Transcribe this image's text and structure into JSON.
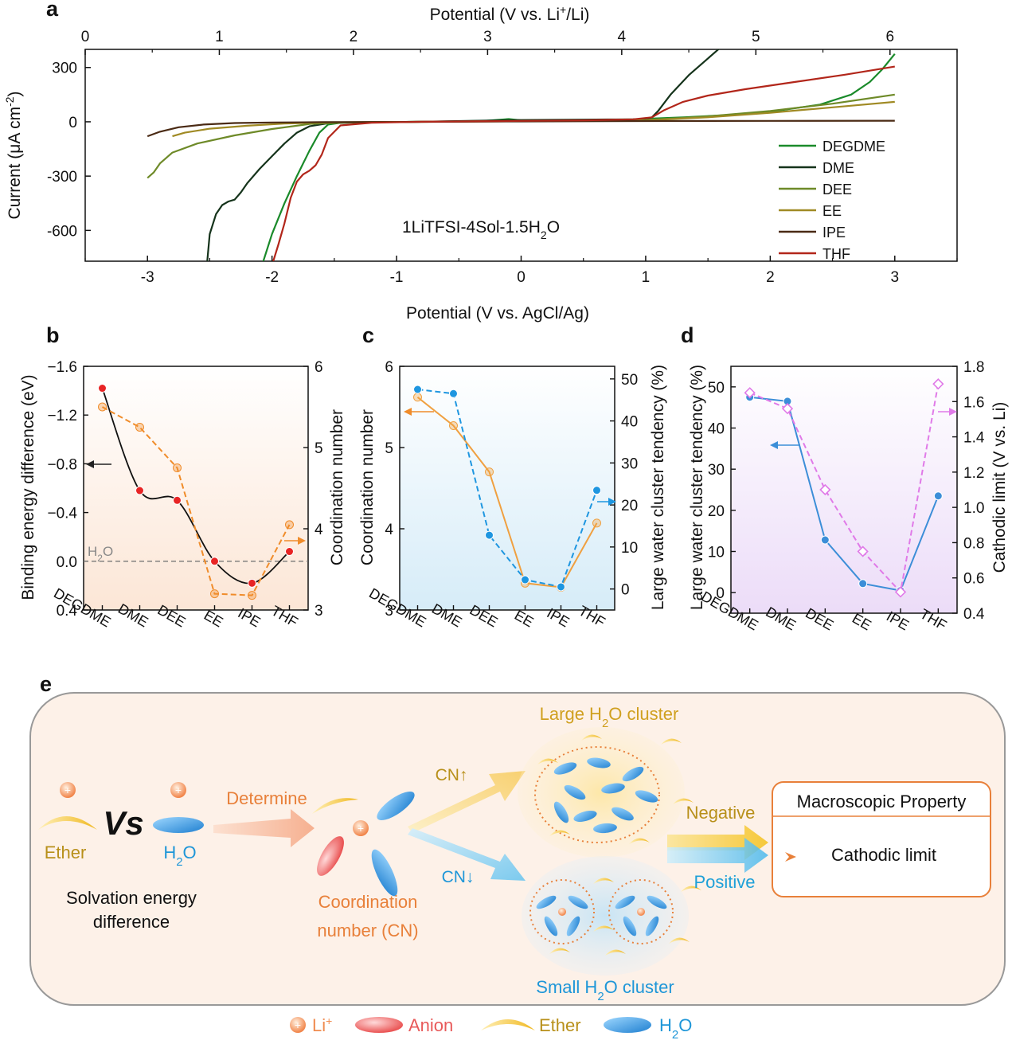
{
  "panels": {
    "a": "a",
    "b": "b",
    "c": "c",
    "d": "d",
    "e": "e"
  },
  "chart_data": [
    {
      "panel": "a",
      "type": "line",
      "xlabel": "Potential (V vs. AgCl/Ag)",
      "x2label_pre": "Potential (V vs. Li",
      "x2label_sup": "+",
      "x2label_post": "/Li)",
      "ylabel_pre": "Current (μA cm",
      "ylabel_sup": "-2",
      "ylabel_post": ")",
      "annotation_pre": "1LiTFSI-4Sol-1.5H",
      "annotation_sub": "2",
      "annotation_post": "O",
      "xlim": [
        -3.5,
        3.5
      ],
      "ylim": [
        -770,
        400
      ],
      "x2lim": [
        0,
        6.5
      ],
      "xticks": [
        -3,
        -2,
        -1,
        0,
        1,
        2,
        3
      ],
      "yticks": [
        300,
        0,
        -300,
        -600
      ],
      "x2ticks": [
        0,
        1,
        2,
        3,
        4,
        5,
        6
      ],
      "legend": "bottom-right",
      "series": [
        {
          "name": "DEGDME",
          "color": "#1a8a2a",
          "x": [
            -2.07,
            -2.0,
            -1.9,
            -1.8,
            -1.7,
            -1.62,
            -1.55,
            -1.45,
            -1.2,
            -0.8,
            -0.3,
            -0.1,
            0,
            0.5,
            0.9,
            1.05,
            1.3,
            1.6,
            2.0,
            2.4,
            2.65,
            2.8,
            2.9,
            3.0
          ],
          "y": [
            -770,
            -620,
            -450,
            -300,
            -160,
            -60,
            -15,
            -5,
            -2,
            0,
            5,
            15,
            8,
            10,
            14,
            18,
            25,
            35,
            55,
            95,
            150,
            220,
            290,
            375
          ]
        },
        {
          "name": "DME",
          "color": "#15331b",
          "x": [
            -2.52,
            -2.5,
            -2.45,
            -2.4,
            -2.35,
            -2.3,
            -2.25,
            -2.2,
            -2.1,
            -2.0,
            -1.9,
            -1.8,
            -1.7,
            -1.55,
            -1.3,
            -0.8,
            0,
            0.5,
            0.9,
            1.0,
            1.05,
            1.1,
            1.2,
            1.35,
            1.5,
            1.6
          ],
          "y": [
            -770,
            -620,
            -510,
            -460,
            -440,
            -430,
            -390,
            -340,
            -260,
            -190,
            -120,
            -60,
            -25,
            -8,
            -3,
            0,
            10,
            12,
            14,
            16,
            25,
            60,
            150,
            260,
            350,
            410
          ]
        },
        {
          "name": "DEE",
          "color": "#6e8a28",
          "x": [
            -3.0,
            -2.95,
            -2.9,
            -2.8,
            -2.6,
            -2.3,
            -2.0,
            -1.7,
            -1.4,
            -1.0,
            0,
            1.0,
            1.5,
            2.0,
            2.5,
            3.0
          ],
          "y": [
            -310,
            -280,
            -230,
            -170,
            -120,
            -75,
            -40,
            -12,
            -4,
            -1,
            4,
            10,
            30,
            60,
            100,
            150
          ]
        },
        {
          "name": "EE",
          "color": "#a08a24",
          "x": [
            -2.8,
            -2.7,
            -2.5,
            -2.2,
            -1.9,
            -1.6,
            -1.3,
            -1.0,
            0,
            1.0,
            1.5,
            2.0,
            2.5,
            3.0
          ],
          "y": [
            -80,
            -60,
            -38,
            -22,
            -10,
            -4,
            -2,
            -1,
            3,
            8,
            25,
            50,
            80,
            110
          ]
        },
        {
          "name": "IPE",
          "color": "#4a2a14",
          "x": [
            -3.0,
            -2.9,
            -2.75,
            -2.55,
            -2.3,
            -2.0,
            -1.6,
            -1.0,
            0,
            1.0,
            2.0,
            3.0
          ],
          "y": [
            -80,
            -55,
            -30,
            -15,
            -7,
            -4,
            -2,
            -1,
            2,
            4,
            5,
            6
          ]
        },
        {
          "name": "THF",
          "color": "#b2261a",
          "x": [
            -1.99,
            -1.95,
            -1.9,
            -1.85,
            -1.8,
            -1.75,
            -1.7,
            -1.65,
            -1.6,
            -1.55,
            -1.45,
            -1.2,
            -0.8,
            0,
            0.5,
            0.9,
            1.05,
            1.15,
            1.3,
            1.5,
            1.8,
            2.2,
            2.6,
            3.0
          ],
          "y": [
            -770,
            -680,
            -560,
            -420,
            -330,
            -290,
            -270,
            -240,
            -180,
            -90,
            -20,
            -5,
            0,
            5,
            8,
            14,
            25,
            65,
            110,
            145,
            180,
            220,
            260,
            305
          ]
        }
      ]
    },
    {
      "panel": "b",
      "type": "line",
      "categories": [
        "DEGDME",
        "DME",
        "DEE",
        "EE",
        "IPE",
        "THF"
      ],
      "ylabel": "Binding energy difference (eV)",
      "y2label": "Coordination number",
      "ylim": [
        0.4,
        -1.6
      ],
      "yticks": [
        -1.6,
        -1.2,
        -0.8,
        -0.4,
        0.0,
        0.4
      ],
      "ytick_labels": [
        "−1.6",
        "−1.2",
        "−0.8",
        "−0.4",
        "0.0",
        "0.4"
      ],
      "y2lim": [
        3,
        6
      ],
      "y2ticks": [
        3,
        4,
        5,
        6
      ],
      "h2o_pre": "H",
      "h2o_sub": "2",
      "h2o_post": "O",
      "h2o_level": 0.0,
      "series": [
        {
          "axis": "left",
          "color": "#e82424",
          "style": "solid-smooth",
          "values": [
            -1.42,
            -0.58,
            -0.5,
            0.0,
            0.18,
            -0.08
          ]
        },
        {
          "axis": "right",
          "color": "#f08c2a",
          "style": "dashed",
          "values": [
            5.5,
            5.25,
            4.75,
            3.2,
            3.18,
            4.05
          ]
        }
      ]
    },
    {
      "panel": "c",
      "type": "line",
      "categories": [
        "DEGDME",
        "DME",
        "DEE",
        "EE",
        "IPE",
        "THF"
      ],
      "ylabel": "Coordination number",
      "y2label": "Large water cluster tendency (%)",
      "ylim": [
        3,
        6
      ],
      "yticks": [
        3,
        4,
        5,
        6
      ],
      "y2lim": [
        -5,
        53
      ],
      "y2ticks": [
        0,
        10,
        20,
        30,
        40,
        50
      ],
      "series": [
        {
          "axis": "left",
          "color": "#f0a040",
          "style": "solid",
          "values": [
            5.62,
            5.27,
            4.7,
            3.33,
            3.28,
            4.07
          ]
        },
        {
          "axis": "right",
          "color": "#1e96e0",
          "style": "dashed",
          "values": [
            47.5,
            46.5,
            12.8,
            2.2,
            0.5,
            23.5
          ]
        }
      ]
    },
    {
      "panel": "d",
      "type": "line",
      "categories": [
        "DEGDME",
        "DME",
        "DEE",
        "EE",
        "IPE",
        "THF"
      ],
      "ylabel": "Large water cluster tendency (%)",
      "y2label": "Cathodic limit (V vs. Li)",
      "ylim": [
        -5,
        55
      ],
      "yticks": [
        0,
        10,
        20,
        30,
        40,
        50
      ],
      "y2lim": [
        0.4,
        1.8
      ],
      "y2ticks": [
        0.4,
        0.6,
        0.8,
        1.0,
        1.2,
        1.4,
        1.6,
        1.8
      ],
      "series": [
        {
          "axis": "left",
          "color": "#3c8ed8",
          "style": "solid",
          "values": [
            47.5,
            46.5,
            12.8,
            2.2,
            0.5,
            23.5
          ]
        },
        {
          "axis": "right",
          "color": "#e07ae8",
          "style": "dashed",
          "values": [
            1.65,
            1.56,
            1.1,
            0.75,
            0.52,
            1.7
          ]
        }
      ]
    }
  ],
  "schematic": {
    "ether": "Ether",
    "vs": "Vs",
    "h2o_pre": "H",
    "h2o_sub": "2",
    "h2o_post": "O",
    "determine": "Determine",
    "solvation_line1": "Solvation energy",
    "solvation_line2": "difference",
    "cn_line1": "Coordination",
    "cn_line2": "number (CN)",
    "cn_up": "CN↑",
    "cn_down": "CN↓",
    "large_pre": "Large H",
    "large_sub": "2",
    "large_post": "O cluster",
    "small_pre": "Small H",
    "small_sub": "2",
    "small_post": "O cluster",
    "negative": "Negative",
    "positive": "Positive",
    "macro_title": "Macroscopic Property",
    "cathodic": "Cathodic limit",
    "legend_li_pre": "Li",
    "legend_li_sup": "+",
    "legend_anion": "Anion",
    "legend_ether": "Ether",
    "legend_h2o_pre": "H",
    "legend_h2o_sub": "2",
    "legend_h2o_post": "O",
    "colors": {
      "ether": "#b8901a",
      "h2o": "#1e96d8",
      "cn": "#e8803a",
      "li": "#f08c50",
      "anion": "#e85a5a",
      "negative": "#b8901a",
      "positive": "#1ea0d8"
    }
  }
}
